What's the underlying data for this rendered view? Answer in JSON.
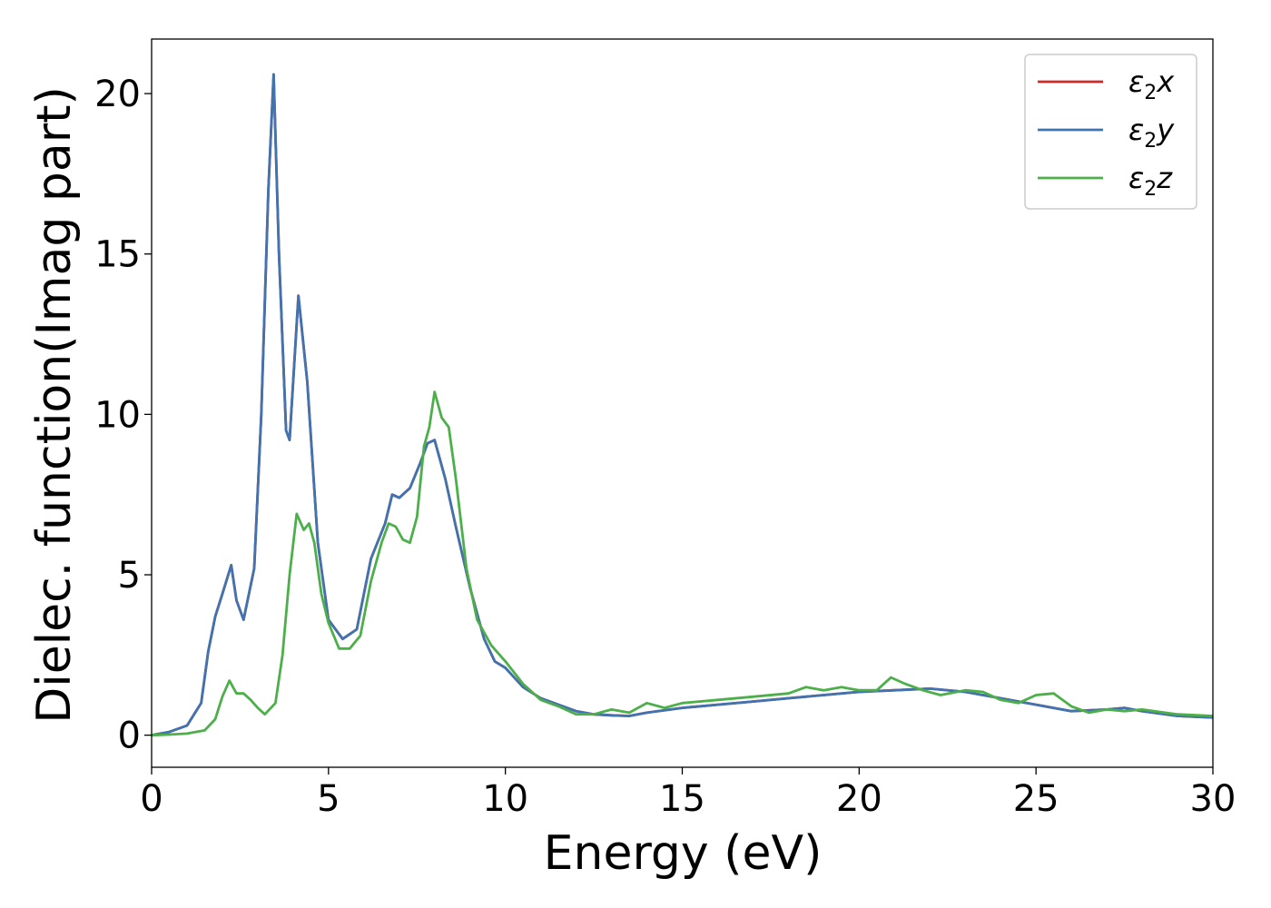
{
  "chart_data": {
    "type": "line",
    "xlabel": "Energy (eV)",
    "ylabel": "Dielec. function(Imag part)",
    "xlim": [
      0,
      30
    ],
    "ylim": [
      -1,
      21.7
    ],
    "xticks": [
      0,
      5,
      10,
      15,
      20,
      25,
      30
    ],
    "yticks": [
      0,
      5,
      10,
      15,
      20
    ],
    "grid": false,
    "legend_position": "top-right",
    "series": [
      {
        "name": "ε2x",
        "legend_main": "ε",
        "legend_sub": "2",
        "legend_var": "x",
        "color": "#d62728",
        "x": [
          0,
          0.5,
          1.0,
          1.4,
          1.6,
          1.8,
          2.0,
          2.25,
          2.4,
          2.6,
          2.9,
          3.1,
          3.3,
          3.45,
          3.6,
          3.8,
          3.9,
          4.15,
          4.4,
          4.7,
          5.0,
          5.4,
          5.8,
          6.2,
          6.6,
          6.8,
          7.0,
          7.3,
          7.6,
          7.8,
          8.0,
          8.3,
          8.6,
          9.0,
          9.4,
          9.7,
          10.0,
          10.5,
          11.0,
          11.5,
          12.0,
          12.5,
          13.0,
          13.5,
          14.0,
          15.0,
          16.0,
          17.0,
          18.0,
          19.0,
          20.0,
          21.0,
          22.0,
          23.0,
          24.0,
          25.0,
          26.0,
          27.0,
          27.5,
          28.0,
          29.0,
          30.0
        ],
        "values": [
          0.0,
          0.1,
          0.3,
          1.0,
          2.6,
          3.7,
          4.4,
          5.3,
          4.2,
          3.6,
          5.2,
          10.0,
          17.0,
          20.6,
          15.0,
          9.5,
          9.2,
          13.7,
          11.0,
          6.0,
          3.6,
          3.0,
          3.3,
          5.5,
          6.6,
          7.5,
          7.4,
          7.7,
          8.5,
          9.1,
          9.2,
          8.0,
          6.5,
          4.6,
          3.0,
          2.3,
          2.1,
          1.5,
          1.15,
          0.95,
          0.75,
          0.65,
          0.62,
          0.6,
          0.7,
          0.85,
          0.95,
          1.05,
          1.15,
          1.25,
          1.35,
          1.4,
          1.45,
          1.35,
          1.15,
          0.95,
          0.75,
          0.8,
          0.85,
          0.75,
          0.6,
          0.55
        ]
      },
      {
        "name": "ε2y",
        "legend_main": "ε",
        "legend_sub": "2",
        "legend_var": "y",
        "color": "#3f74b0",
        "x": [
          0,
          0.5,
          1.0,
          1.4,
          1.6,
          1.8,
          2.0,
          2.25,
          2.4,
          2.6,
          2.9,
          3.1,
          3.3,
          3.45,
          3.6,
          3.8,
          3.9,
          4.15,
          4.4,
          4.7,
          5.0,
          5.4,
          5.8,
          6.2,
          6.6,
          6.8,
          7.0,
          7.3,
          7.6,
          7.8,
          8.0,
          8.3,
          8.6,
          9.0,
          9.4,
          9.7,
          10.0,
          10.5,
          11.0,
          11.5,
          12.0,
          12.5,
          13.0,
          13.5,
          14.0,
          15.0,
          16.0,
          17.0,
          18.0,
          19.0,
          20.0,
          21.0,
          22.0,
          23.0,
          24.0,
          25.0,
          26.0,
          27.0,
          27.5,
          28.0,
          29.0,
          30.0
        ],
        "values": [
          0.0,
          0.1,
          0.3,
          1.0,
          2.6,
          3.7,
          4.4,
          5.3,
          4.2,
          3.6,
          5.2,
          10.0,
          17.0,
          20.6,
          15.0,
          9.5,
          9.2,
          13.7,
          11.0,
          6.0,
          3.6,
          3.0,
          3.3,
          5.5,
          6.6,
          7.5,
          7.4,
          7.7,
          8.5,
          9.1,
          9.2,
          8.0,
          6.5,
          4.6,
          3.0,
          2.3,
          2.1,
          1.5,
          1.15,
          0.95,
          0.75,
          0.65,
          0.62,
          0.6,
          0.7,
          0.85,
          0.95,
          1.05,
          1.15,
          1.25,
          1.35,
          1.4,
          1.45,
          1.35,
          1.15,
          0.95,
          0.75,
          0.8,
          0.85,
          0.75,
          0.6,
          0.55
        ]
      },
      {
        "name": "ε2z",
        "legend_main": "ε",
        "legend_sub": "2",
        "legend_var": "z",
        "color": "#4daf4a",
        "x": [
          0,
          0.5,
          1.0,
          1.5,
          1.8,
          2.0,
          2.2,
          2.4,
          2.6,
          2.8,
          3.0,
          3.2,
          3.5,
          3.7,
          3.9,
          4.1,
          4.3,
          4.45,
          4.6,
          4.8,
          5.0,
          5.3,
          5.6,
          5.9,
          6.2,
          6.5,
          6.7,
          6.9,
          7.1,
          7.3,
          7.5,
          7.7,
          7.85,
          8.0,
          8.2,
          8.4,
          8.6,
          8.9,
          9.2,
          9.6,
          10.0,
          10.5,
          11.0,
          11.5,
          12.0,
          12.5,
          13.0,
          13.5,
          14.0,
          14.5,
          15.0,
          16.0,
          17.0,
          18.0,
          18.5,
          19.0,
          19.5,
          20.0,
          20.5,
          20.9,
          21.3,
          21.8,
          22.3,
          23.0,
          23.5,
          24.0,
          24.5,
          25.0,
          25.5,
          26.0,
          26.5,
          27.0,
          27.5,
          28.0,
          29.0,
          30.0
        ],
        "values": [
          0.0,
          0.02,
          0.05,
          0.15,
          0.5,
          1.2,
          1.7,
          1.3,
          1.3,
          1.1,
          0.85,
          0.65,
          1.0,
          2.5,
          5.0,
          6.9,
          6.4,
          6.6,
          6.0,
          4.4,
          3.5,
          2.7,
          2.7,
          3.1,
          4.8,
          6.0,
          6.6,
          6.5,
          6.1,
          6.0,
          6.8,
          9.0,
          9.6,
          10.7,
          9.9,
          9.6,
          8.0,
          5.2,
          3.6,
          2.8,
          2.3,
          1.6,
          1.1,
          0.9,
          0.65,
          0.65,
          0.8,
          0.7,
          1.0,
          0.85,
          1.0,
          1.1,
          1.2,
          1.3,
          1.5,
          1.4,
          1.5,
          1.4,
          1.4,
          1.8,
          1.6,
          1.4,
          1.25,
          1.4,
          1.35,
          1.1,
          1.0,
          1.25,
          1.3,
          0.9,
          0.7,
          0.8,
          0.75,
          0.8,
          0.65,
          0.6
        ]
      }
    ]
  }
}
